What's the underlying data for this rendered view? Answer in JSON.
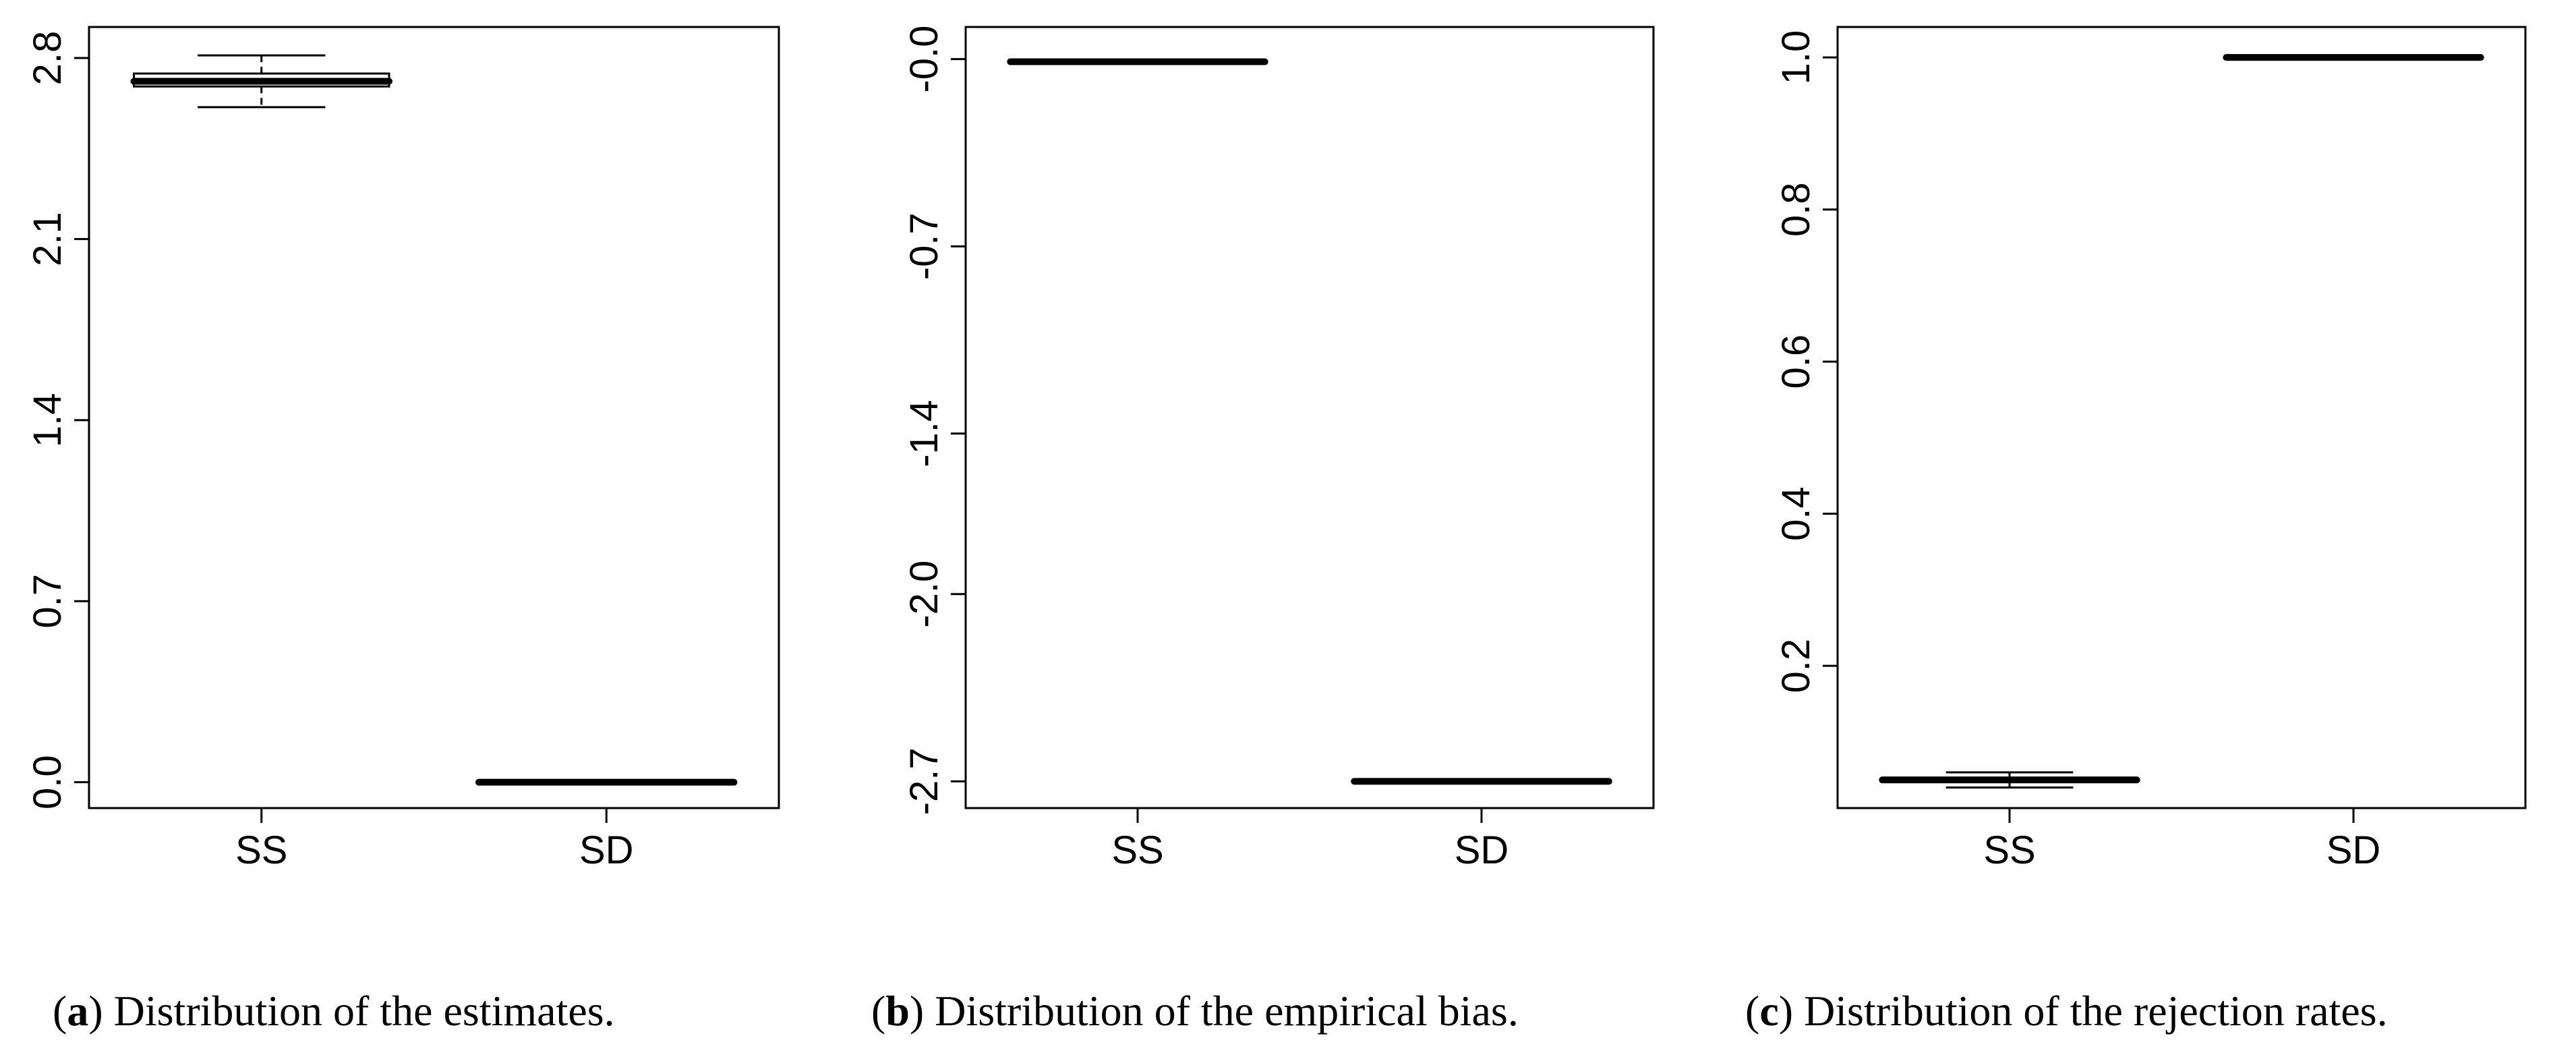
{
  "chart_data": [
    {
      "type": "box",
      "caption_letter": "a",
      "caption_text": "Distribution of the estimates.",
      "categories": [
        "SS",
        "SD"
      ],
      "ylim": [
        -0.1,
        2.92
      ],
      "yticks": [
        0.0,
        0.7,
        1.4,
        2.1,
        2.8
      ],
      "ytick_labels": [
        "0.0",
        "0.7",
        "1.4",
        "2.1",
        "2.8"
      ],
      "boxes": [
        {
          "category": "SS",
          "min": 2.61,
          "q1": 2.69,
          "median": 2.71,
          "q3": 2.74,
          "max": 2.81
        },
        {
          "category": "SD",
          "min": 0.0,
          "q1": 0.0,
          "median": 0.0,
          "q3": 0.0,
          "max": 0.0
        }
      ],
      "grid": false
    },
    {
      "type": "box",
      "caption_letter": "b",
      "caption_text": "Distribution of the empirical bias.",
      "categories": [
        "SS",
        "SD"
      ],
      "ylim": [
        -2.8,
        0.12
      ],
      "yticks": [
        -2.7,
        -2.0,
        -1.4,
        -0.7,
        -0.0
      ],
      "ytick_labels": [
        "-2.7",
        "-2.0",
        "-1.4",
        "-0.7",
        "-0.0"
      ],
      "boxes": [
        {
          "category": "SS",
          "min": -0.01,
          "q1": -0.01,
          "median": -0.01,
          "q3": -0.01,
          "max": -0.01
        },
        {
          "category": "SD",
          "min": -2.7,
          "q1": -2.7,
          "median": -2.7,
          "q3": -2.7,
          "max": -2.7
        }
      ],
      "grid": false
    },
    {
      "type": "box",
      "caption_letter": "c",
      "caption_text": "Distribution of the rejection rates.",
      "categories": [
        "SS",
        "SD"
      ],
      "ylim": [
        0.013,
        1.04
      ],
      "yticks": [
        0.2,
        0.4,
        0.6,
        0.8,
        1.0
      ],
      "ytick_labels": [
        "0.2",
        "0.4",
        "0.6",
        "0.8",
        "1.0"
      ],
      "boxes": [
        {
          "category": "SS",
          "min": 0.04,
          "q1": 0.048,
          "median": 0.05,
          "q3": 0.053,
          "max": 0.06
        },
        {
          "category": "SD",
          "min": 1.0,
          "q1": 1.0,
          "median": 1.0,
          "q3": 1.0,
          "max": 1.0
        }
      ],
      "grid": false
    }
  ]
}
